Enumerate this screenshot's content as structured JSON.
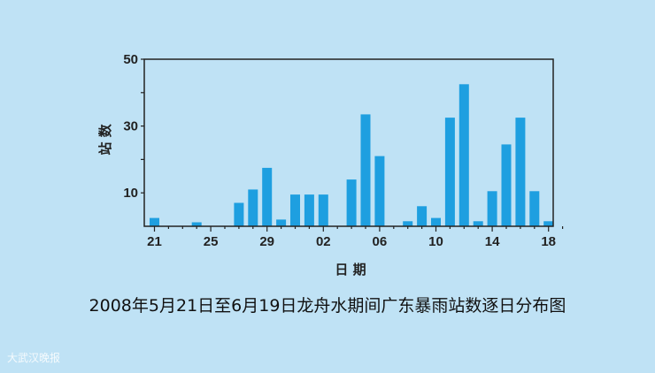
{
  "chart_data": {
    "type": "bar",
    "title": "",
    "xlabel": "日 期",
    "ylabel": "站 数",
    "ylim": [
      0,
      50
    ],
    "y_ticks": [
      10,
      30,
      50
    ],
    "x_tick_labels": [
      {
        "day_index": 0,
        "label": "21"
      },
      {
        "day_index": 4,
        "label": "25"
      },
      {
        "day_index": 8,
        "label": "29"
      },
      {
        "day_index": 12,
        "label": "02"
      },
      {
        "day_index": 16,
        "label": "06"
      },
      {
        "day_index": 20,
        "label": "10"
      },
      {
        "day_index": 24,
        "label": "14"
      },
      {
        "day_index": 28,
        "label": "18"
      }
    ],
    "categories": [
      "5/21",
      "5/22",
      "5/23",
      "5/24",
      "5/25",
      "5/26",
      "5/27",
      "5/28",
      "5/29",
      "5/30",
      "5/31",
      "6/01",
      "6/02",
      "6/03",
      "6/04",
      "6/05",
      "6/06",
      "6/07",
      "6/08",
      "6/09",
      "6/10",
      "6/11",
      "6/12",
      "6/13",
      "6/14",
      "6/15",
      "6/16",
      "6/17",
      "6/18",
      "6/19"
    ],
    "values": [
      2.5,
      0,
      0,
      1.2,
      0,
      0,
      7,
      11,
      17.5,
      2,
      9.5,
      9.5,
      9.5,
      0,
      14,
      33.5,
      21,
      0,
      1.5,
      6,
      2.5,
      32.5,
      42.5,
      1.5,
      10.5,
      24.5,
      32.5,
      10.5,
      1.5,
      0
    ],
    "bar_color": "#1e9fe0",
    "grid": false
  },
  "caption": "2008年5月21日至6月19日龙舟水期间广东暴雨站数逐日分布图",
  "watermark": "大武汉晚报"
}
